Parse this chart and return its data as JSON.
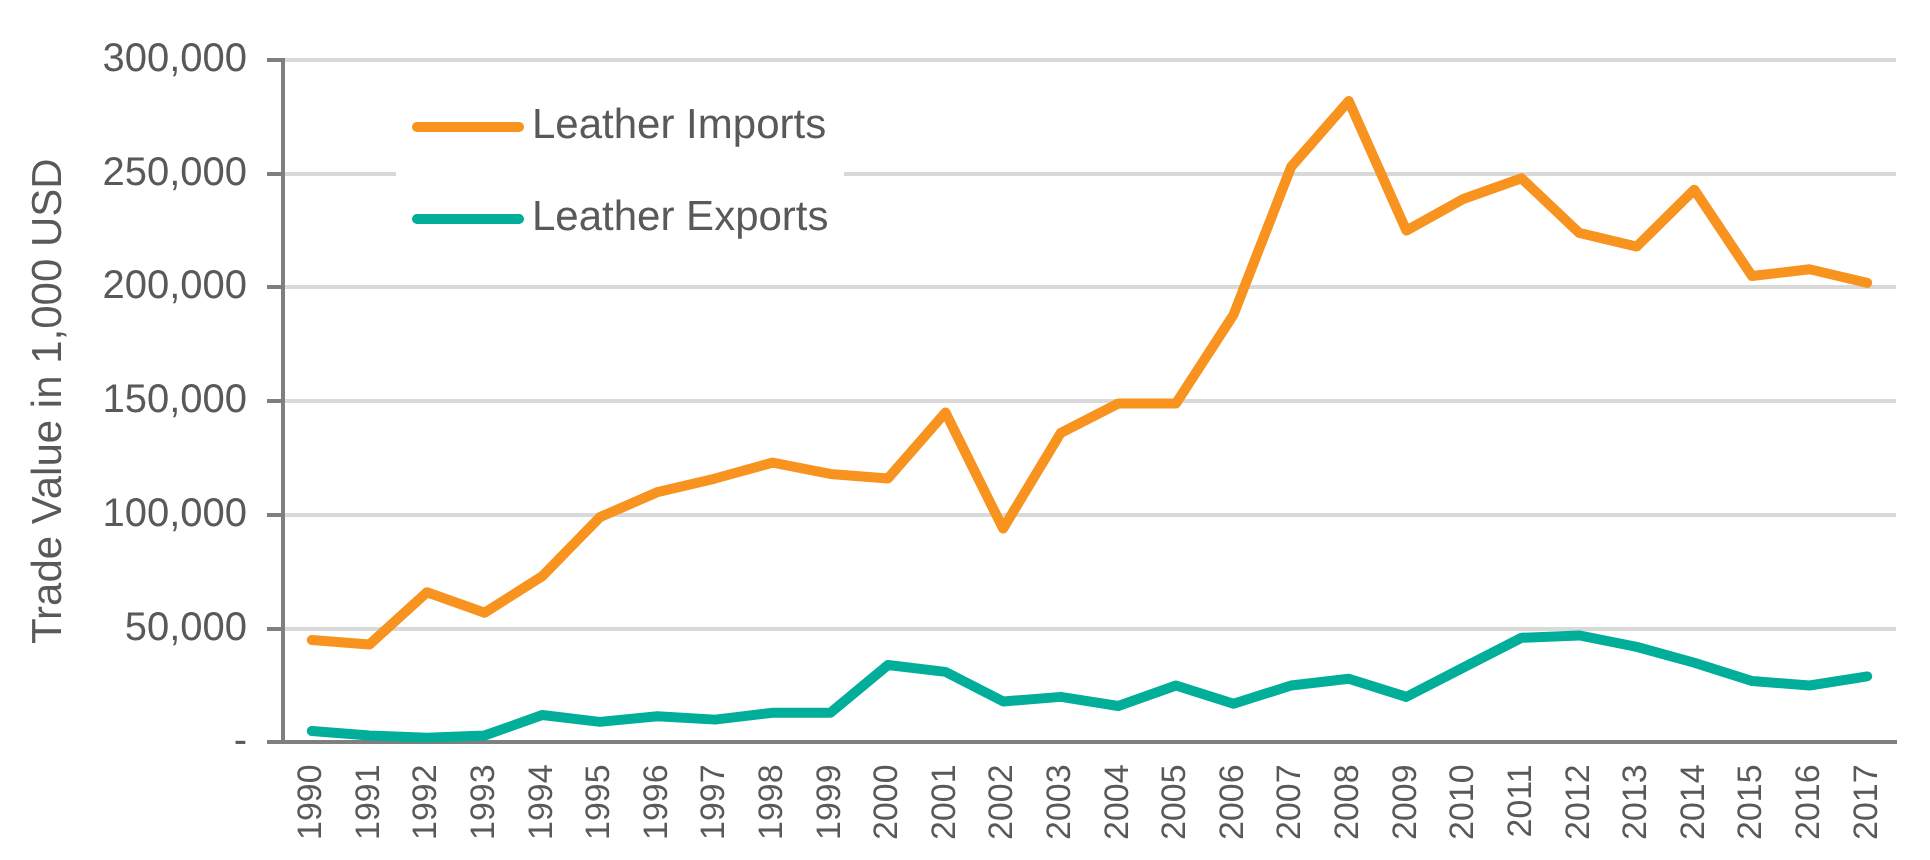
{
  "chart_data": {
    "type": "line",
    "ylabel": "Trade Value in 1,000 USD",
    "categories": [
      "1990",
      "1991",
      "1992",
      "1993",
      "1994",
      "1995",
      "1996",
      "1997",
      "1998",
      "1999",
      "2000",
      "2001",
      "2002",
      "2003",
      "2004",
      "2005",
      "2006",
      "2007",
      "2008",
      "2009",
      "2010",
      "2011",
      "2012",
      "2013",
      "2014",
      "2015",
      "2016",
      "2017"
    ],
    "series": [
      {
        "name": "Leather Imports",
        "color": "#f7931e",
        "values": [
          45000,
          43000,
          66000,
          57000,
          73000,
          99000,
          110000,
          116000,
          123000,
          118000,
          116000,
          145000,
          94000,
          136000,
          149000,
          149000,
          188000,
          253000,
          282000,
          225000,
          239000,
          248000,
          224000,
          218000,
          243000,
          205000,
          208000,
          202000
        ]
      },
      {
        "name": "Leather Exports",
        "color": "#00ae9a",
        "values": [
          5000,
          3000,
          2000,
          3000,
          12000,
          9000,
          11500,
          10000,
          13000,
          13000,
          34000,
          31000,
          18000,
          20000,
          16000,
          25000,
          17000,
          25000,
          28000,
          20000,
          33000,
          46000,
          47000,
          42000,
          35000,
          27000,
          25000,
          29000
        ]
      }
    ],
    "ylim": [
      0,
      300000
    ],
    "yticks": [
      {
        "value": 0,
        "label": "-"
      },
      {
        "value": 50000,
        "label": "50,000"
      },
      {
        "value": 100000,
        "label": "100,000"
      },
      {
        "value": 150000,
        "label": "150,000"
      },
      {
        "value": 200000,
        "label": "200,000"
      },
      {
        "value": 250000,
        "label": "250,000"
      },
      {
        "value": 300000,
        "label": "300,000"
      }
    ],
    "grid": "y",
    "legend": "top left",
    "marker": "none",
    "line_style": "solid"
  }
}
